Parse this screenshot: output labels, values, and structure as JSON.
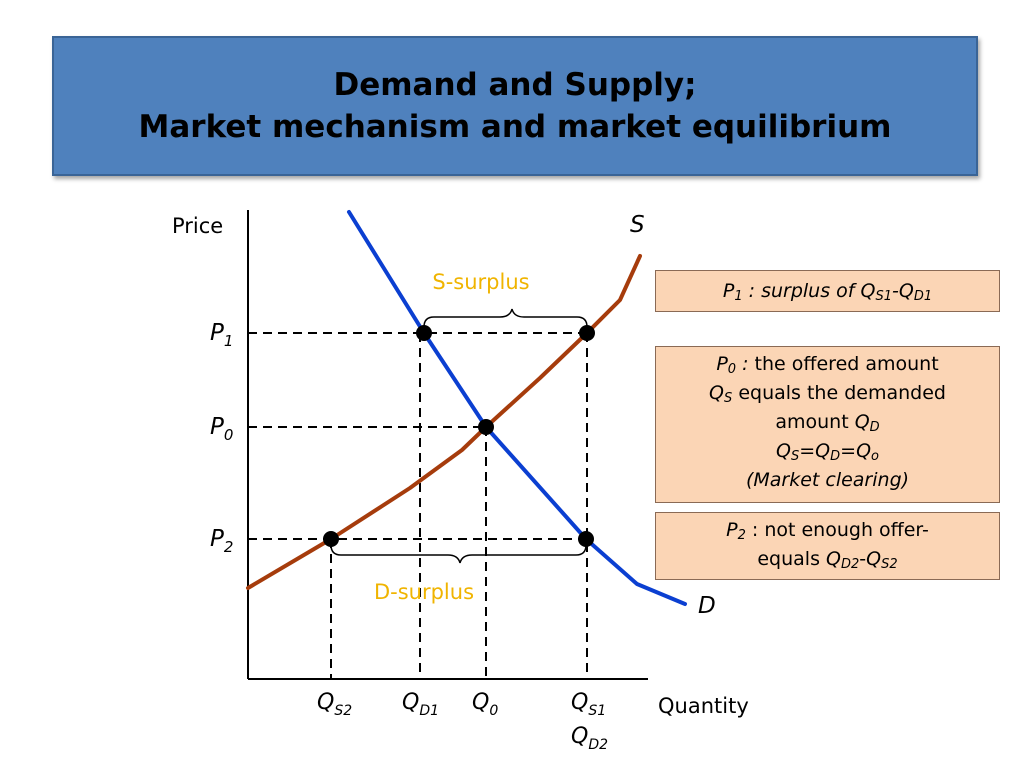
{
  "title": {
    "line1": "Demand and Supply;",
    "line2": "Market mechanism and market equilibrium"
  },
  "axes": {
    "y_label": "Price",
    "x_label": "Quantity"
  },
  "curves": {
    "supply_label": "S",
    "demand_label": "D",
    "supply_color": "#a63c0c",
    "demand_color": "#0b3fd1"
  },
  "price_labels": [
    {
      "base": "P",
      "sub": "1"
    },
    {
      "base": "P",
      "sub": "0"
    },
    {
      "base": "P",
      "sub": "2"
    }
  ],
  "quantity_labels": {
    "qs2": {
      "base": "Q",
      "sub": "S2"
    },
    "qd1": {
      "base": "Q",
      "sub": "D1"
    },
    "q0": {
      "base": "Q",
      "sub": "0"
    },
    "qs1": {
      "base": "Q",
      "sub": "S1"
    },
    "qd2": {
      "base": "Q",
      "sub": "D2"
    }
  },
  "brackets": {
    "s_surplus": "S-surplus",
    "d_surplus": "D-surplus",
    "color": "#f0b400"
  },
  "notes": {
    "p1": {
      "p": "P",
      "p_sub": "1",
      "t1": " : surplus of ",
      "q1": "Q",
      "q1_sub": "S1",
      "dash": "-",
      "q2": "Q",
      "q2_sub": "D1"
    },
    "p0": {
      "p": "P",
      "p_sub": "0",
      "colon": " :",
      "t1": " the offered amount",
      "qs": "Q",
      "qs_sub": "S",
      "t2": " equals the demanded",
      "t3": "amount ",
      "qd": "Q",
      "qd_sub": "D",
      "e_qs": "Q",
      "e_qs_sub": "S",
      "eq1": "=",
      "e_qd": "Q",
      "e_qd_sub": "D",
      "eq2": "=",
      "e_qo": "Q",
      "e_qo_sub": "o",
      "clearing": "(Market clearing)"
    },
    "p2": {
      "p": "P",
      "p_sub": "2",
      "t1": " : not enough offer-",
      "t2": "equals ",
      "q1": "Q",
      "q1_sub": "D2",
      "dash": "-",
      "q2": "Q",
      "q2_sub": "S2"
    }
  }
}
